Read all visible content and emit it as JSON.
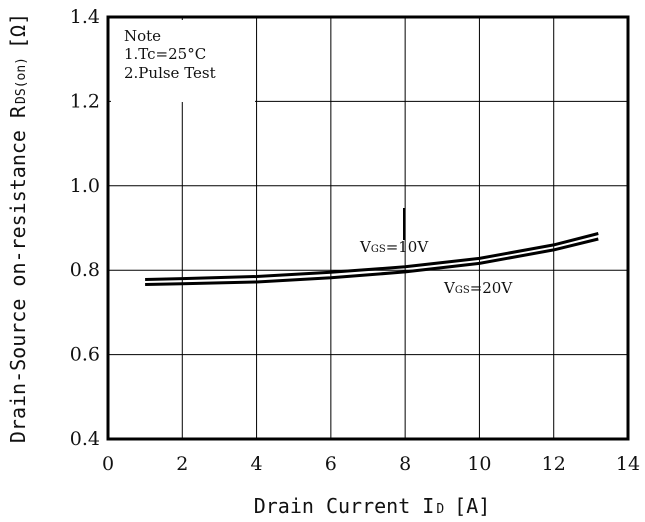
{
  "chart_data": {
    "type": "line",
    "xlabel": "Drain Current I",
    "xlabel_sub": "D",
    "xlabel_unit": "[A]",
    "ylabel": "Drain-Source on-resistance R",
    "ylabel_sub": "DS(on)",
    "ylabel_unit": "[Ω]",
    "xlim": [
      0,
      14
    ],
    "ylim": [
      0.4,
      1.4
    ],
    "x_ticks": [
      0,
      2,
      4,
      6,
      8,
      10,
      12,
      14
    ],
    "y_ticks": [
      0.4,
      0.6,
      0.8,
      1.0,
      1.2,
      1.4
    ],
    "x_tick_labels": [
      "0",
      "2",
      "4",
      "6",
      "8",
      "10",
      "12",
      "14"
    ],
    "y_tick_labels": [
      "0.4",
      "0.6",
      "0.8",
      "1.0",
      "1.2",
      "1.4"
    ],
    "grid": true,
    "note": {
      "title": "Note",
      "lines": [
        "1.Tc=25°C",
        "2.Pulse Test"
      ]
    },
    "series": [
      {
        "name": "VGS=10V",
        "label_main": "V",
        "label_sub": "GS",
        "label_rest": "=10V",
        "x": [
          1,
          2,
          4,
          6,
          8,
          10,
          12,
          13.2
        ],
        "y": [
          0.778,
          0.78,
          0.785,
          0.795,
          0.808,
          0.828,
          0.86,
          0.887
        ]
      },
      {
        "name": "VGS=20V",
        "label_main": "V",
        "label_sub": "GS",
        "label_rest": "=20V",
        "x": [
          1,
          2,
          4,
          6,
          8,
          10,
          12,
          13.2
        ],
        "y": [
          0.766,
          0.768,
          0.772,
          0.782,
          0.796,
          0.816,
          0.848,
          0.874
        ]
      }
    ]
  }
}
